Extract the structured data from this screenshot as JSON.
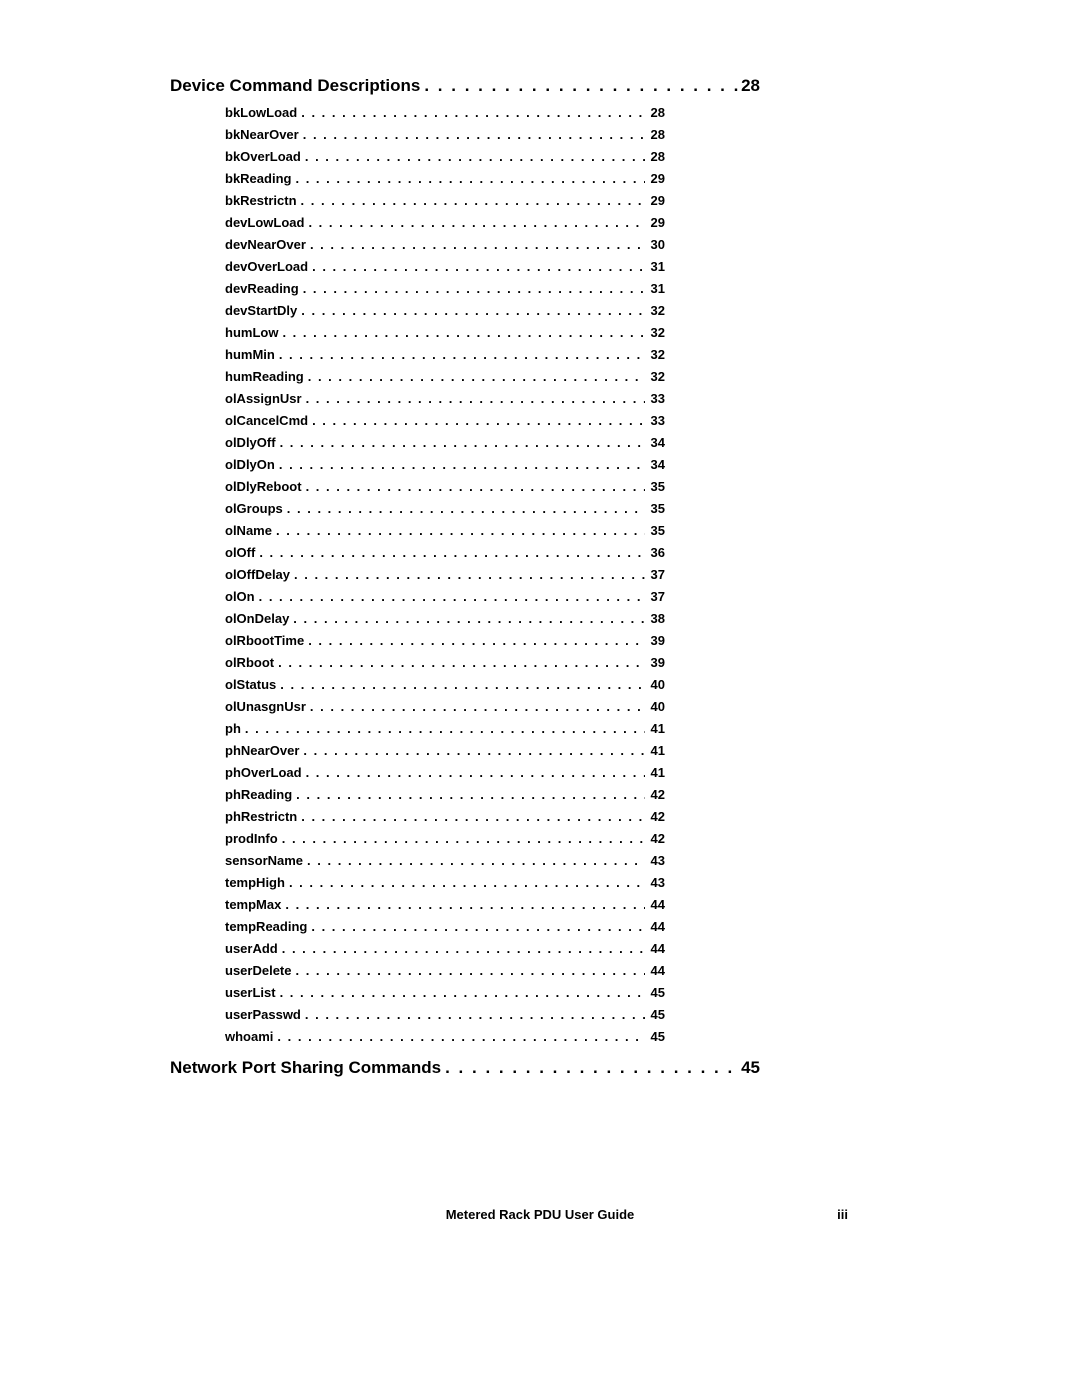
{
  "footer": {
    "title": "Metered Rack PDU User Guide",
    "roman": "iii"
  },
  "sections": [
    {
      "title": "Device Command Descriptions",
      "page": "28",
      "entries": [
        {
          "label": "bkLowLoad",
          "page": "28"
        },
        {
          "label": "bkNearOver",
          "page": "28"
        },
        {
          "label": "bkOverLoad",
          "page": "28"
        },
        {
          "label": "bkReading",
          "page": "29"
        },
        {
          "label": "bkRestrictn",
          "page": "29"
        },
        {
          "label": "devLowLoad",
          "page": "29"
        },
        {
          "label": "devNearOver",
          "page": "30"
        },
        {
          "label": "devOverLoad",
          "page": "31"
        },
        {
          "label": "devReading",
          "page": "31"
        },
        {
          "label": "devStartDly",
          "page": "32"
        },
        {
          "label": "humLow",
          "page": "32"
        },
        {
          "label": "humMin",
          "page": "32"
        },
        {
          "label": "humReading",
          "page": "32"
        },
        {
          "label": "olAssignUsr",
          "page": "33"
        },
        {
          "label": "olCancelCmd",
          "page": "33"
        },
        {
          "label": "olDlyOff",
          "page": "34"
        },
        {
          "label": "olDlyOn",
          "page": "34"
        },
        {
          "label": "olDlyReboot",
          "page": "35"
        },
        {
          "label": "olGroups",
          "page": "35"
        },
        {
          "label": "olName",
          "page": "35"
        },
        {
          "label": "olOff",
          "page": "36"
        },
        {
          "label": "olOffDelay",
          "page": "37"
        },
        {
          "label": "olOn",
          "page": "37"
        },
        {
          "label": "olOnDelay",
          "page": "38"
        },
        {
          "label": "olRbootTime",
          "page": "39"
        },
        {
          "label": "olRboot",
          "page": "39"
        },
        {
          "label": "olStatus",
          "page": "40"
        },
        {
          "label": "olUnasgnUsr",
          "page": "40"
        },
        {
          "label": "ph",
          "page": "41"
        },
        {
          "label": "phNearOver",
          "page": "41"
        },
        {
          "label": "phOverLoad",
          "page": "41"
        },
        {
          "label": "phReading",
          "page": "42"
        },
        {
          "label": "phRestrictn",
          "page": "42"
        },
        {
          "label": "prodInfo",
          "page": "42"
        },
        {
          "label": "sensorName",
          "page": "43"
        },
        {
          "label": "tempHigh",
          "page": "43"
        },
        {
          "label": "tempMax",
          "page": "44"
        },
        {
          "label": "tempReading",
          "page": "44"
        },
        {
          "label": "userAdd",
          "page": "44"
        },
        {
          "label": "userDelete",
          "page": "44"
        },
        {
          "label": "userList",
          "page": "45"
        },
        {
          "label": "userPasswd",
          "page": "45"
        },
        {
          "label": "whoami",
          "page": "45"
        }
      ]
    },
    {
      "title": "Network Port Sharing Commands",
      "page": "45",
      "entries": []
    }
  ],
  "style": {
    "leader": ". . . . . . . . . . . . . . . . . . . . . . . . . . . . . . . . . . . . . . . . . . . . . . . . . . . . . . . . . . . . . . . . . . . . . . . . . . . . . . . . . . . . . . . . . . . . . . . ."
  }
}
